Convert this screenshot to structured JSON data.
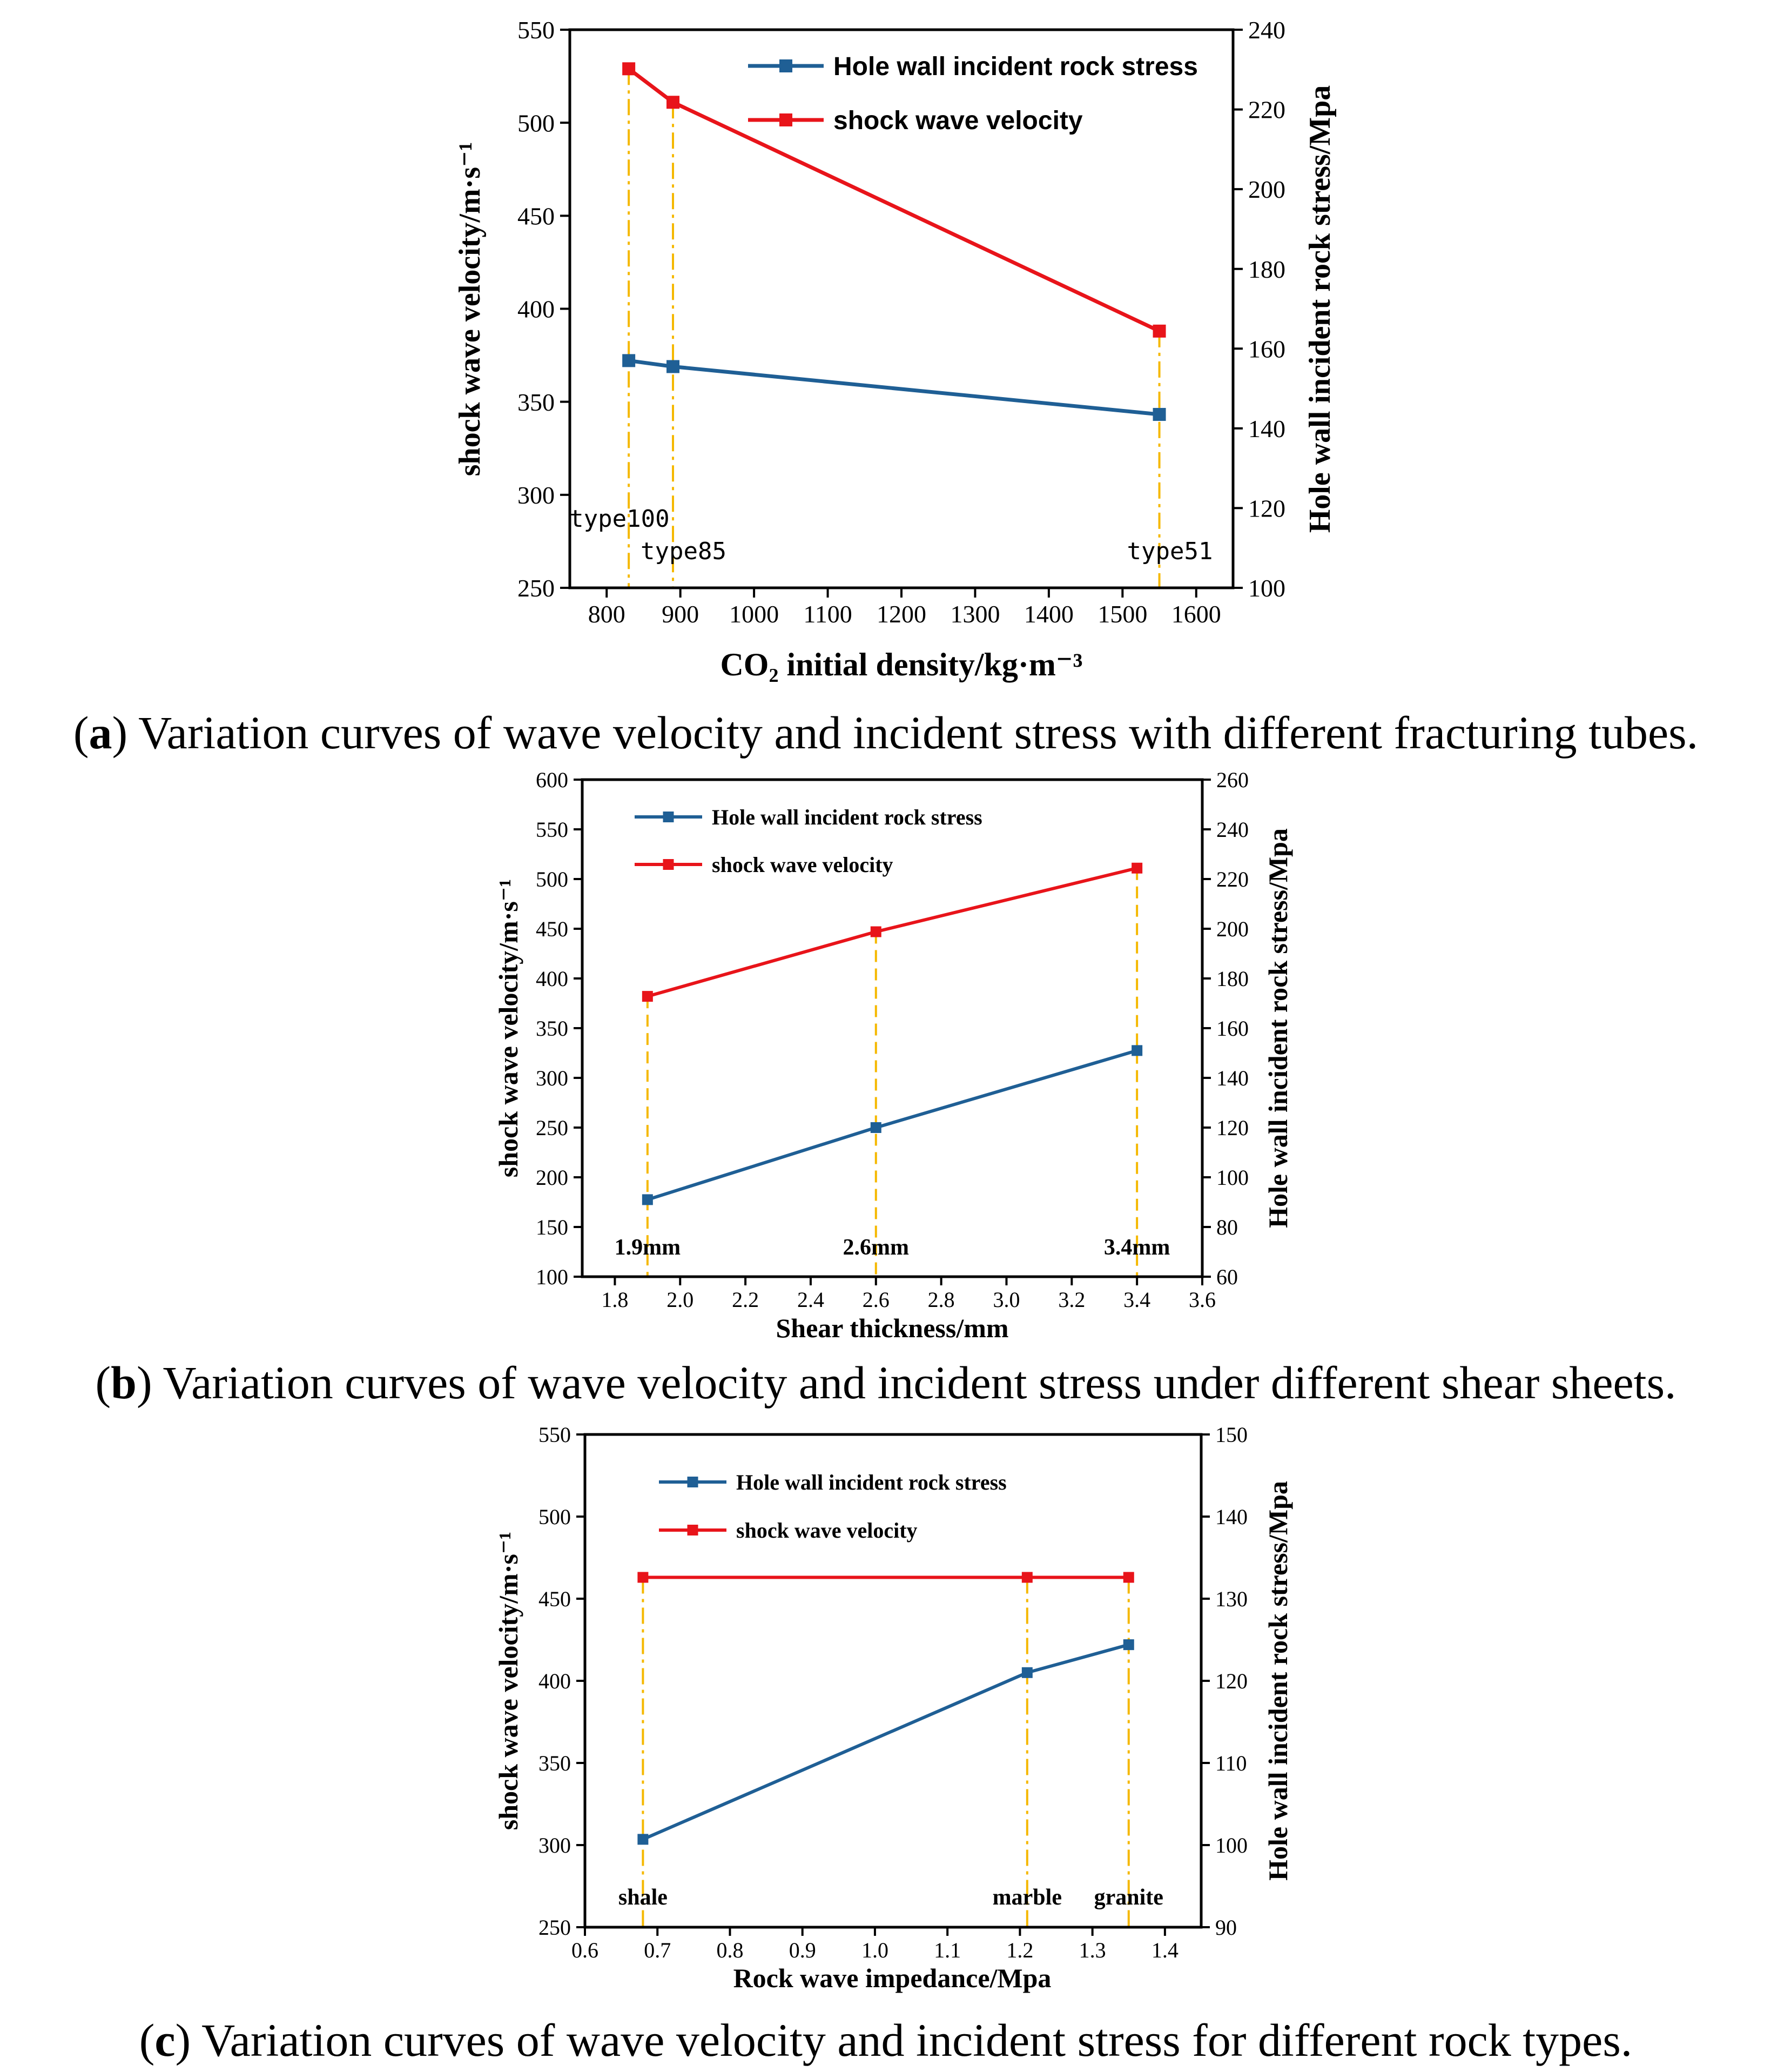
{
  "figure": {
    "panels": [
      {
        "letter": "a",
        "caption": "Variation curves of wave velocity and incident stress with different fracturing tubes."
      },
      {
        "letter": "b",
        "caption": "Variation curves of wave velocity and incident stress under different shear sheets."
      },
      {
        "letter": "c",
        "caption": "Variation curves of wave velocity and incident stress for different rock types."
      }
    ]
  },
  "chart_data": [
    {
      "type": "line",
      "dual_axis": true,
      "xlabel": "CO₂ initial density/kg·m⁻³",
      "ylabel_left": "shock wave velocity/m·s⁻¹",
      "ylabel_right": "Hole wall incident rock stress/Mpa",
      "xlim": [
        750,
        1650
      ],
      "xticks": [
        800,
        900,
        1000,
        1100,
        1200,
        1300,
        1400,
        1500,
        1600
      ],
      "ylim_left": [
        250,
        550
      ],
      "yticks_left": [
        250,
        300,
        350,
        400,
        450,
        500,
        550
      ],
      "ylim_right": [
        100,
        240
      ],
      "yticks_right": [
        100,
        120,
        140,
        160,
        180,
        200,
        220,
        240
      ],
      "x": [
        830,
        890,
        1550
      ],
      "series": [
        {
          "name": "Hole wall incident rock stress",
          "axis": "right",
          "color": "#1f5f95",
          "values": [
            157,
            155.5,
            143.5
          ]
        },
        {
          "name": "shock wave velocity",
          "axis": "left",
          "color": "#e8141a",
          "values": [
            529,
            511,
            388
          ]
        }
      ],
      "guide_lines": {
        "color": "#f5b800",
        "style": "dashdot"
      },
      "point_labels": [
        "type100",
        "type85",
        "type51"
      ],
      "legend": "top-right"
    },
    {
      "type": "line",
      "dual_axis": true,
      "xlabel": "Shear thickness/mm",
      "ylabel_left": "shock wave velocity/m·s⁻¹",
      "ylabel_right": "Hole wall incident rock stress/Mpa",
      "xlim": [
        1.7,
        3.6
      ],
      "xticks": [
        1.8,
        2.0,
        2.2,
        2.4,
        2.6,
        2.8,
        3.0,
        3.2,
        3.4,
        3.6
      ],
      "ylim_left": [
        100,
        600
      ],
      "yticks_left": [
        100,
        150,
        200,
        250,
        300,
        350,
        400,
        450,
        500,
        550,
        600
      ],
      "ylim_right": [
        60,
        260
      ],
      "yticks_right": [
        60,
        80,
        100,
        120,
        140,
        160,
        180,
        200,
        220,
        240,
        260
      ],
      "x": [
        1.9,
        2.6,
        3.4
      ],
      "series": [
        {
          "name": "Hole wall incident rock stress",
          "axis": "right",
          "color": "#1f5f95",
          "values": [
            91,
            120,
            151
          ]
        },
        {
          "name": "shock wave velocity",
          "axis": "left",
          "color": "#e8141a",
          "values": [
            382,
            447,
            511
          ]
        }
      ],
      "guide_lines": {
        "color": "#f5b800",
        "style": "dash"
      },
      "point_labels": [
        "1.9mm",
        "2.6mm",
        "3.4mm"
      ],
      "legend": "top-left"
    },
    {
      "type": "line",
      "dual_axis": true,
      "xlabel": "Rock wave impedance/Mpa",
      "ylabel_left": "shock wave velocity/m·s⁻¹",
      "ylabel_right": "Hole wall incident rock stress/Mpa",
      "xlim": [
        0.6,
        1.45
      ],
      "xticks": [
        0.6,
        0.7,
        0.8,
        0.9,
        1.0,
        1.1,
        1.2,
        1.3,
        1.4
      ],
      "ylim_left": [
        250,
        550
      ],
      "yticks_left": [
        250,
        300,
        350,
        400,
        450,
        500,
        550
      ],
      "ylim_right": [
        90,
        150
      ],
      "yticks_right": [
        90,
        100,
        110,
        120,
        130,
        140,
        150
      ],
      "x": [
        0.68,
        1.21,
        1.35
      ],
      "series": [
        {
          "name": "Hole wall incident rock stress",
          "axis": "right",
          "color": "#1f5f95",
          "values": [
            100.7,
            121,
            124.4
          ]
        },
        {
          "name": "shock wave velocity",
          "axis": "left",
          "color": "#e8141a",
          "values": [
            463,
            463,
            463
          ]
        }
      ],
      "guide_lines": {
        "color": "#f5b800",
        "style": "dashdot"
      },
      "point_labels": [
        "shale",
        "marble",
        "granite"
      ],
      "legend": "top-left"
    }
  ]
}
